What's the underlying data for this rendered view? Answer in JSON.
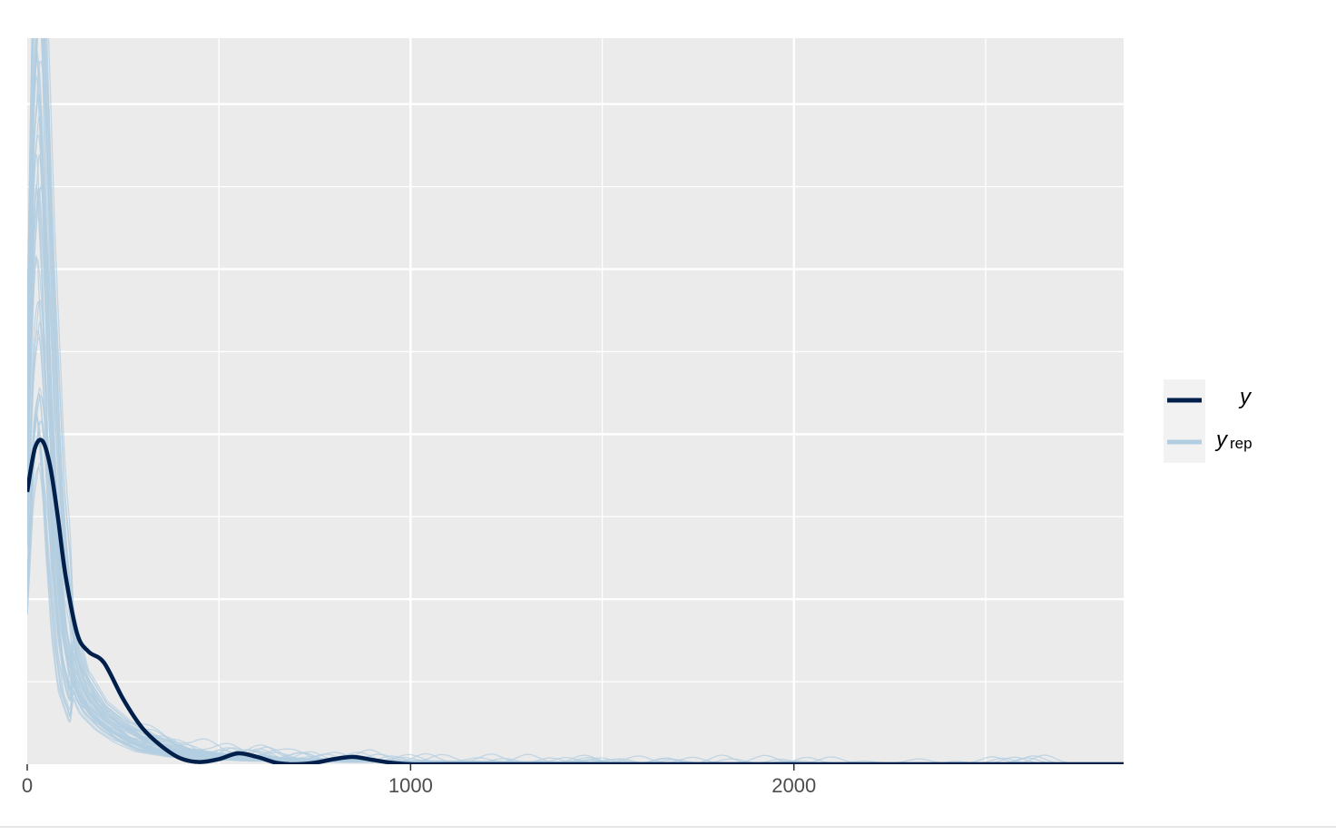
{
  "chart_data": {
    "type": "line",
    "title": "",
    "xlabel": "",
    "ylabel": "",
    "xlim": [
      0,
      2860
    ],
    "ylim": [
      0,
      1
    ],
    "x_ticks": [
      0,
      1000,
      2000
    ],
    "x_tick_labels": [
      "0",
      "1000",
      "2000"
    ],
    "y_tick_labels": [],
    "grid": true,
    "legend_position": "right",
    "colors": {
      "y": "#011f4b",
      "yrep": "#b3cde0",
      "panel_background": "#ebebeb",
      "grid": "#ffffff",
      "legend_key_background": "#f2f2f2"
    },
    "legend": [
      {
        "label": "y",
        "series": "y"
      },
      {
        "label": "y",
        "subscript": "rep",
        "series": "yrep"
      }
    ],
    "series": [
      {
        "name": "y",
        "x": [
          0,
          20,
          40,
          60,
          80,
          100,
          130,
          160,
          200,
          250,
          300,
          350,
          400,
          450,
          500,
          550,
          600,
          650,
          700,
          750,
          800,
          850,
          900,
          950,
          1000,
          1100,
          1500,
          2000,
          2500,
          2860
        ],
        "y": [
          0.375,
          0.435,
          0.445,
          0.41,
          0.34,
          0.26,
          0.18,
          0.155,
          0.14,
          0.09,
          0.05,
          0.025,
          0.008,
          0.003,
          0.007,
          0.015,
          0.01,
          0.002,
          0.0,
          0.002,
          0.007,
          0.01,
          0.006,
          0.002,
          0.0,
          0.0,
          0.0,
          0.0,
          0.0,
          0.0
        ]
      }
    ],
    "yrep": {
      "count": 50,
      "x": [
        0,
        15,
        30,
        45,
        60,
        80,
        100,
        130,
        170,
        220,
        280,
        350,
        450,
        550,
        700,
        900,
        1100,
        1400,
        1700,
        2000,
        2300,
        2600,
        2860
      ],
      "y": [
        0.45,
        0.8,
        0.92,
        0.78,
        0.55,
        0.32,
        0.19,
        0.12,
        0.08,
        0.055,
        0.035,
        0.02,
        0.012,
        0.008,
        0.005,
        0.004,
        0.003,
        0.002,
        0.0015,
        0.001,
        0.001,
        0.0008,
        0.0005
      ]
    }
  }
}
